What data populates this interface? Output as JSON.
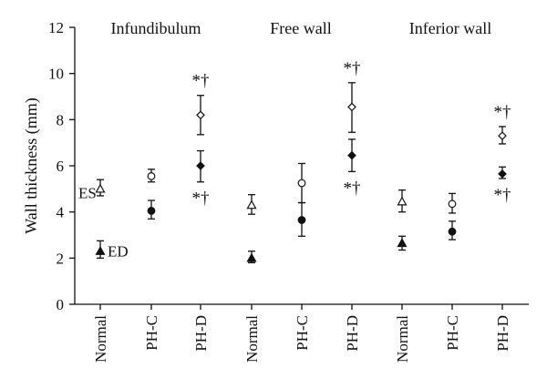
{
  "chart_data": {
    "type": "scatter",
    "ylabel": "Wall thickness (mm)",
    "ylim": [
      0,
      12
    ],
    "yticks": [
      0,
      2,
      4,
      6,
      8,
      10,
      12
    ],
    "groups": [
      "Infundibulum",
      "Free wall",
      "Inferior wall"
    ],
    "categories": [
      "Normal",
      "PH-C",
      "PH-D"
    ],
    "series": [
      {
        "name": "ES",
        "values": [
          [
            5.0,
            5.55,
            8.2
          ],
          [
            4.3,
            5.25,
            8.55
          ],
          [
            4.45,
            4.35,
            7.3
          ]
        ],
        "err_low": [
          [
            4.7,
            5.3,
            7.35
          ],
          [
            3.9,
            4.4,
            7.45
          ],
          [
            4.0,
            3.95,
            6.95
          ]
        ],
        "err_high": [
          [
            5.4,
            5.85,
            9.05
          ],
          [
            4.75,
            6.1,
            9.6
          ],
          [
            4.95,
            4.8,
            7.7
          ]
        ]
      },
      {
        "name": "ED",
        "values": [
          [
            2.3,
            4.05,
            6.0
          ],
          [
            2.0,
            3.65,
            6.45
          ],
          [
            2.65,
            3.15,
            5.65
          ]
        ],
        "err_low": [
          [
            2.0,
            3.7,
            5.3
          ],
          [
            1.8,
            2.95,
            5.75
          ],
          [
            2.35,
            2.8,
            5.45
          ]
        ],
        "err_high": [
          [
            2.75,
            4.5,
            6.65
          ],
          [
            2.3,
            4.4,
            7.15
          ],
          [
            2.95,
            3.6,
            5.95
          ]
        ]
      }
    ],
    "annotations": {
      "significance": "*†"
    }
  }
}
